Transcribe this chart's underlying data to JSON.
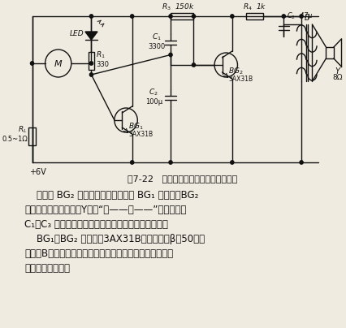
{
  "title": "图7-22   录音机倒带终止指示器电路之二",
  "bg_color": "#f0ebe0",
  "text_color": "#111111",
  "body_lines": [
    "    晶体管 BG₂ 即组成间歇振荡器，当 BG₁ 导通时，BG₂",
    "截通电工作，由扬声器Y发出“嗟——嗟——”哒声。更改",
    "C₁、C₃ 容量可改变间歇振荡器振荡频率和间隔时间。",
    "    BG₁、BG₂ 均可选用3AX31B锔三极管，β倶50左右",
    "即可。B可用小型晶体管收音机用的输出变压器。其它阻容",
    "元件无特殊要求。"
  ],
  "font_size_title": 8.0,
  "font_size_body": 8.5
}
